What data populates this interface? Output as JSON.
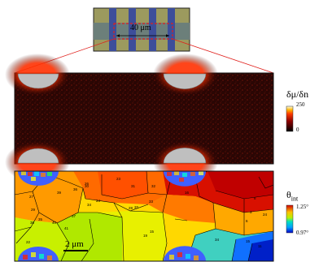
{
  "inset": {
    "scale_label": "40 μm"
  },
  "panel_middle": {
    "colorbar": {
      "title": "δμ/δn",
      "max_label": "250",
      "min_label": "0"
    }
  },
  "panel_bottom": {
    "scale_bar_label": "2 μm",
    "colorbar": {
      "title_main": "θ",
      "title_sub": "int",
      "max_label": "1.25°",
      "min_label": "0.97°"
    },
    "grain_labels": [
      "27",
      "29",
      "39",
      "36",
      "34",
      "37",
      "30",
      "23",
      "31",
      "32",
      "33",
      "26",
      "40",
      "41",
      "35",
      "38",
      "19",
      "15",
      "28",
      "24",
      "6",
      "3",
      "34",
      "15",
      "11",
      "16",
      "24",
      "8",
      "20",
      "22"
    ]
  },
  "colors": {
    "dashed_box": "#e0201c",
    "middle_background": "#2a0604",
    "hole_fill": "#bfbfbf"
  }
}
